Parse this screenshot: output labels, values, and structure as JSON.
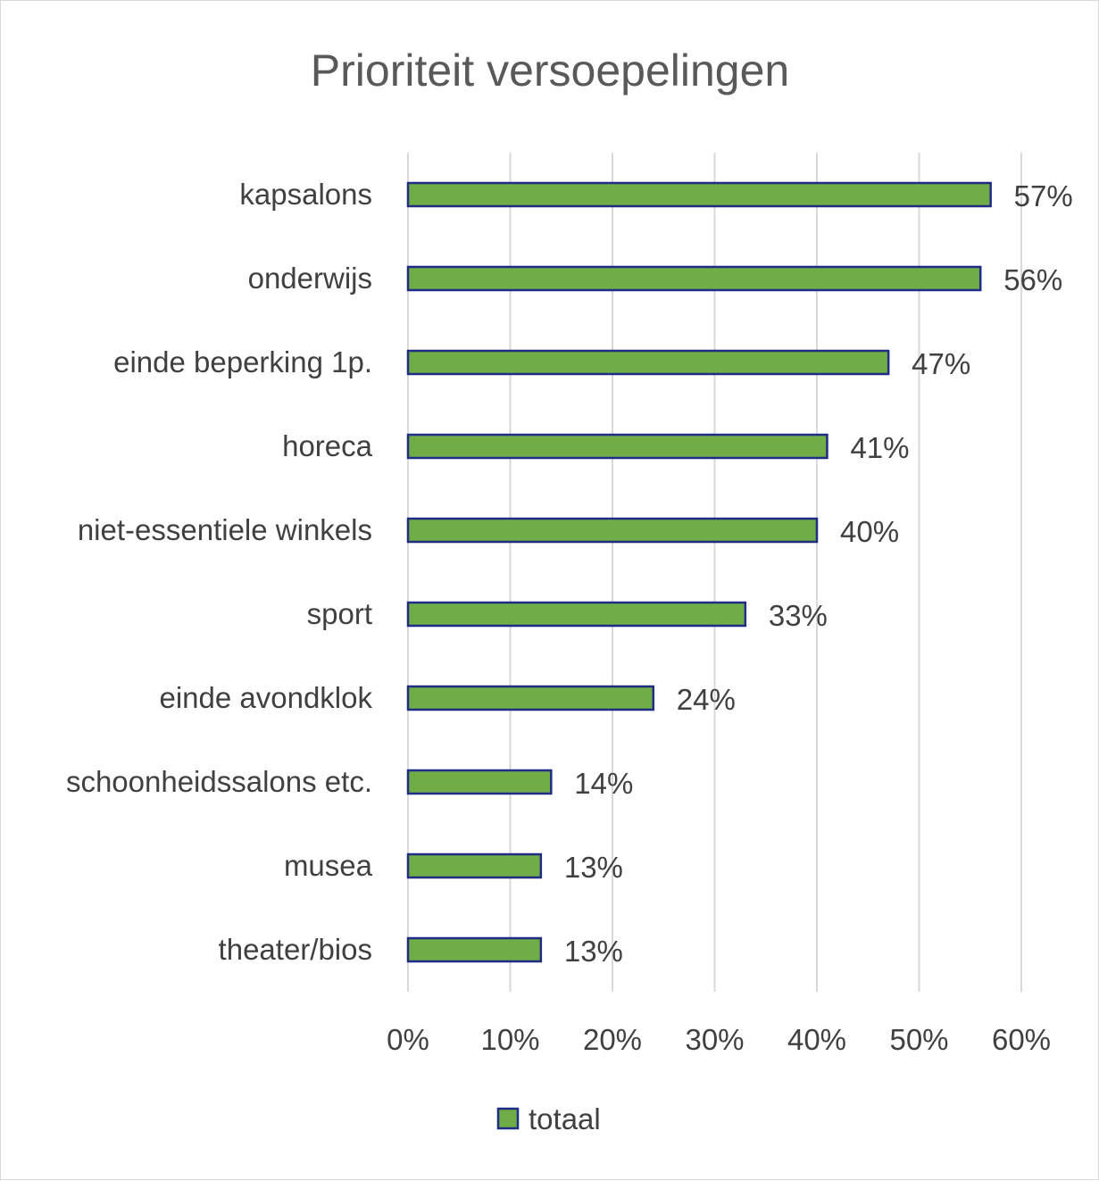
{
  "chart_data": {
    "type": "bar",
    "orientation": "horizontal",
    "title": "Prioriteit versoepelingen",
    "categories": [
      "kapsalons",
      "onderwijs",
      "einde beperking 1p.",
      "horeca",
      "niet-essentiele winkels",
      "sport",
      "einde avondklok",
      "schoonheidssalons etc.",
      "musea",
      "theater/bios"
    ],
    "series": [
      {
        "name": "totaal",
        "values": [
          57,
          56,
          47,
          41,
          40,
          33,
          24,
          14,
          13,
          13
        ],
        "labels": [
          "57%",
          "56%",
          "47%",
          "41%",
          "40%",
          "33%",
          "24%",
          "14%",
          "13%",
          "13%"
        ]
      }
    ],
    "xlim": [
      0,
      60
    ],
    "xticks": [
      "0%",
      "10%",
      "20%",
      "30%",
      "40%",
      "50%",
      "60%"
    ],
    "grid": "vertical",
    "legend": "bottom",
    "colors": {
      "bar_fill": "#70ad47",
      "bar_stroke": "#1f2d86",
      "grid": "#d9d9d9"
    }
  }
}
